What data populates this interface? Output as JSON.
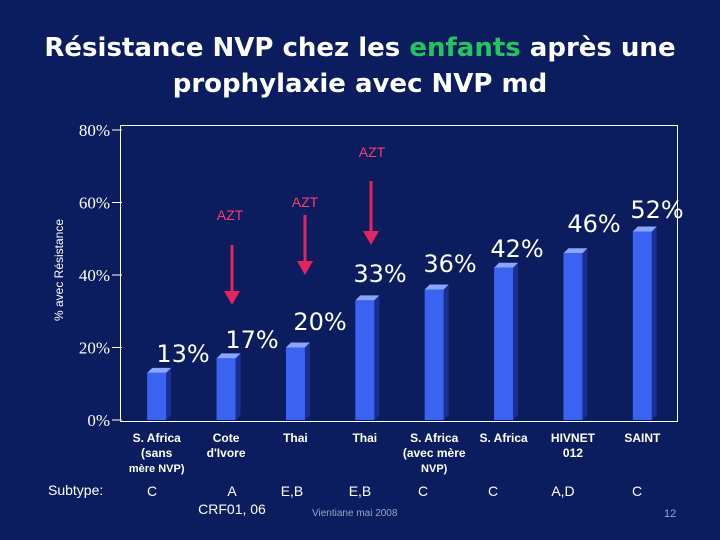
{
  "title_parts": [
    "Résistance NVP chez les ",
    "enfants",
    " après une",
    "prophylaxie avec  NVP md"
  ],
  "chart_data": {
    "type": "bar",
    "ylabel": "% avec Résistance",
    "ylim": [
      0,
      80
    ],
    "ticks": [
      "0%",
      "20%",
      "40%",
      "60%",
      "80%"
    ],
    "categories": [
      [
        "S. Africa",
        "(sans",
        "mère NVP)"
      ],
      [
        "Cote",
        "d'Ivore"
      ],
      [
        "Thai"
      ],
      [
        "Thai"
      ],
      [
        "S. Africa",
        "(avec mère",
        "NVP)"
      ],
      [
        "S. Africa"
      ],
      [
        "HIVNET",
        "012"
      ],
      [
        "SAINT"
      ]
    ],
    "values": [
      13,
      17,
      20,
      33,
      36,
      42,
      46,
      52
    ],
    "value_labels": [
      "13%",
      "17%",
      "20%",
      "33%",
      "36%",
      "42%",
      "46%",
      "52%"
    ],
    "azt_labels": [
      "AZT",
      "AZT",
      "AZT"
    ],
    "colors": {
      "bar": "#3a63f2",
      "bar_side": "#1a2f8f",
      "bar_top": "#8aa4ff",
      "arrow": "#e4245f",
      "azt_text": "#ff3b6b"
    }
  },
  "subtype_label": "Subtype:",
  "subtypes": [
    "C",
    "A\nCRF01, 06",
    "E,B",
    "E,B",
    "C",
    "C",
    "A,D",
    "C"
  ],
  "footer": "Vientiane mai 2008",
  "slide_number": "12"
}
